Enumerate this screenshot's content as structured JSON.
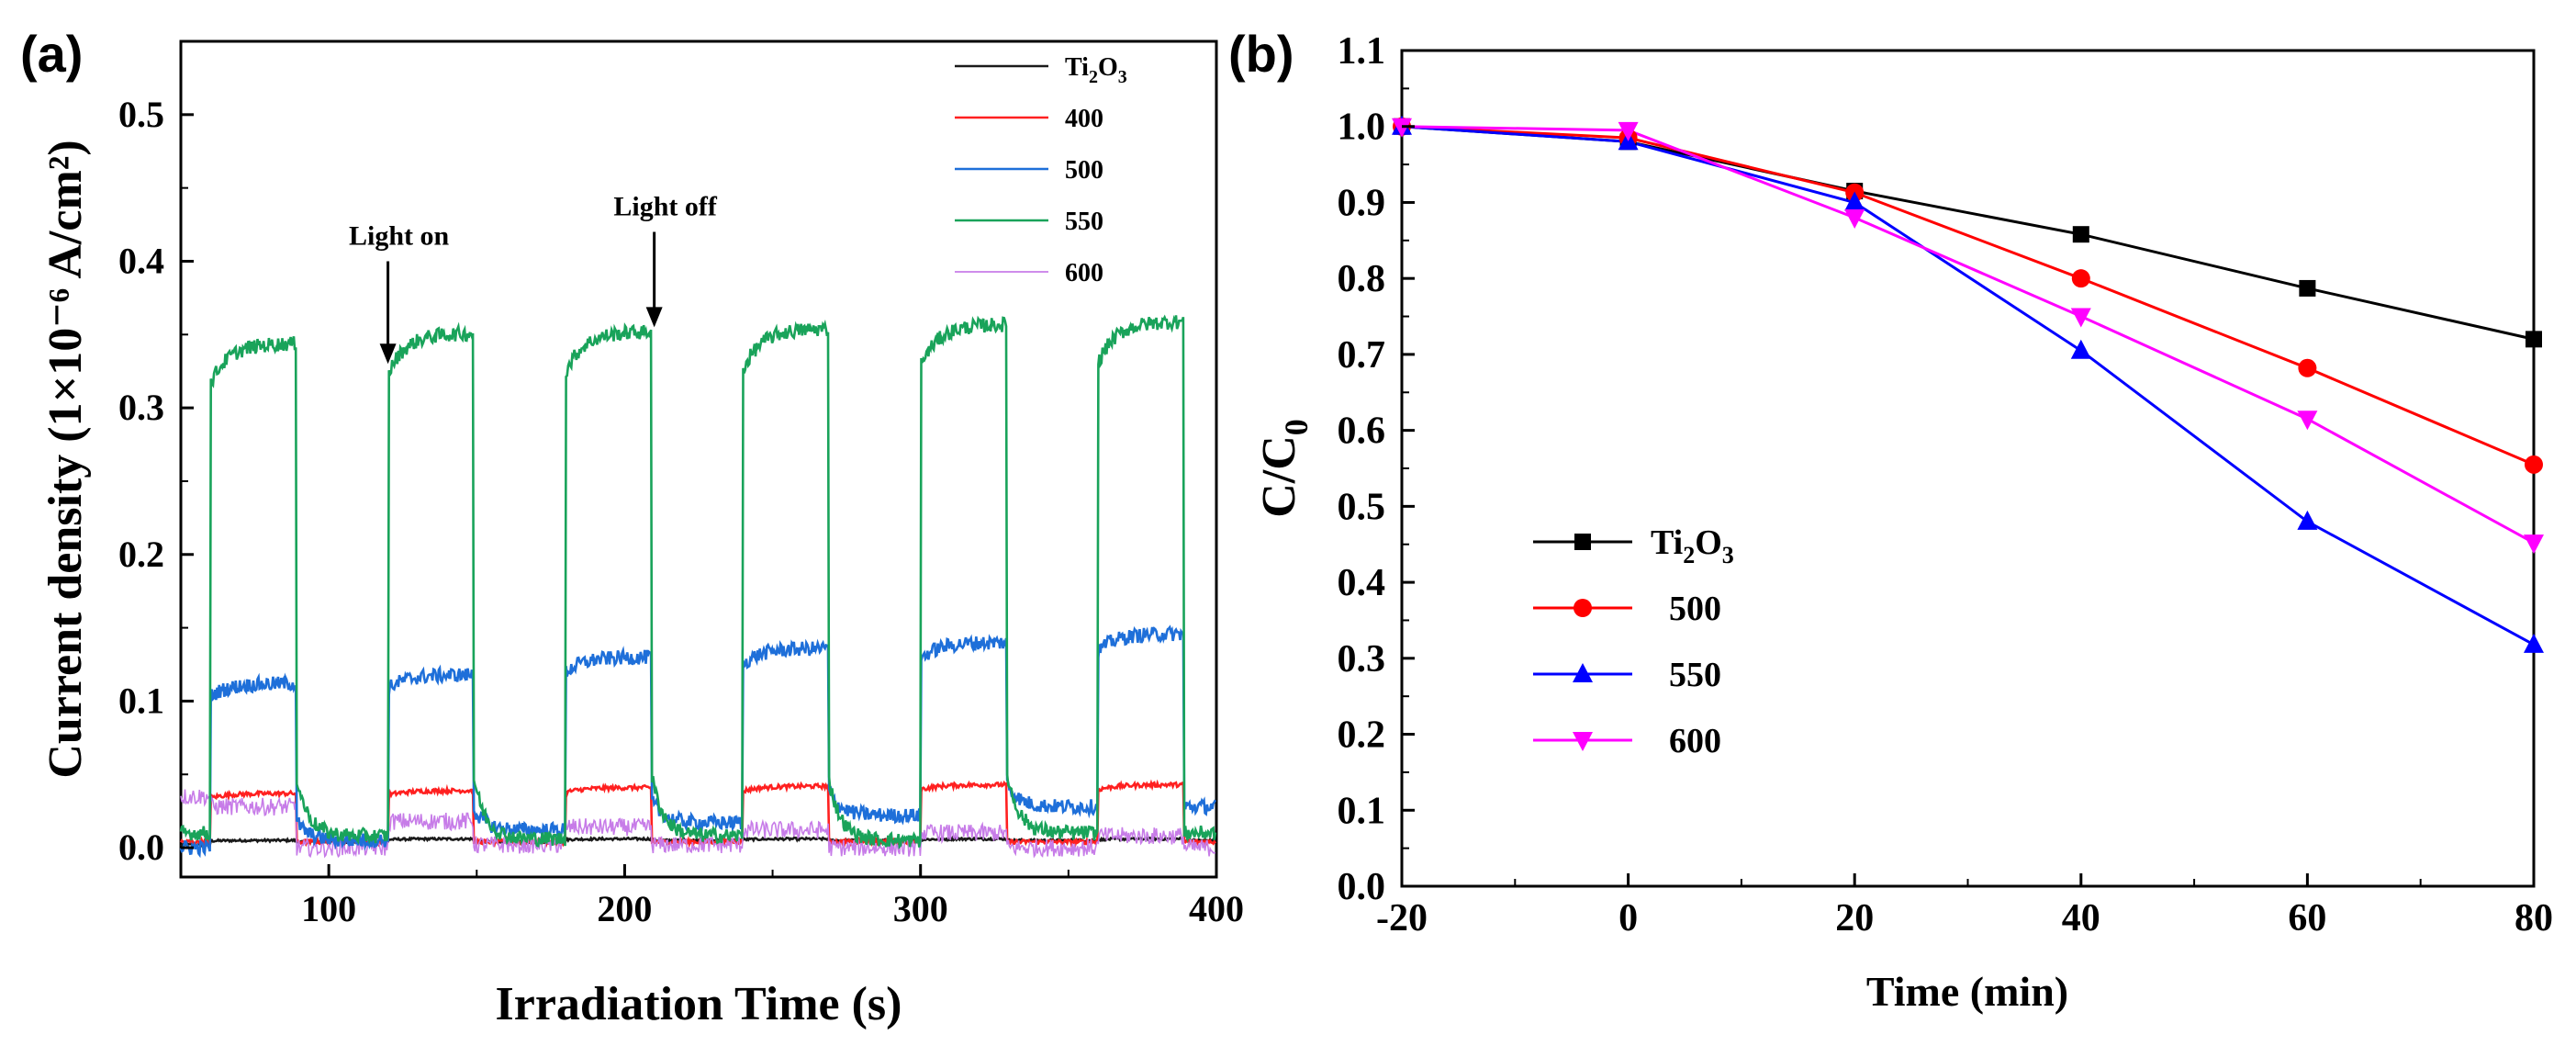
{
  "chart_data": [
    {
      "type": "line",
      "panel_label": "(a)",
      "xlabel": "Irradiation Time (s)",
      "ylabel": "Current density (1×10⁻⁶ A/cm²)",
      "xlim": [
        50,
        400
      ],
      "ylim": [
        -0.02,
        0.55
      ],
      "xticks": [
        100,
        200,
        300,
        400
      ],
      "yticks": [
        0.0,
        0.1,
        0.2,
        0.3,
        0.4,
        0.5
      ],
      "legend": {
        "position": "top-right"
      },
      "annotations": [
        {
          "text": "Light on",
          "x": 120,
          "arrow_from": 0.4,
          "arrow_to": 0.33
        },
        {
          "text": "Light off",
          "x": 210,
          "arrow_from": 0.42,
          "arrow_to": 0.355
        }
      ],
      "on_intervals": [
        [
          60,
          89
        ],
        [
          120,
          149
        ],
        [
          180,
          209
        ],
        [
          240,
          269
        ],
        [
          300,
          329
        ],
        [
          360,
          389
        ]
      ],
      "series": [
        {
          "name": "Ti2O3",
          "display": {
            "base": "Ti",
            "sub1": "2",
            "mid": "O",
            "sub2": "3"
          },
          "color": "#1a1a1a",
          "dark": [
            0.002,
            0.004,
            0.004,
            0.005,
            0.005,
            0.005
          ],
          "plateau": [
            0.005,
            0.006,
            0.006,
            0.006,
            0.006,
            0.006
          ]
        },
        {
          "name": "400",
          "color": "#ff2020",
          "dark": [
            0.004,
            0.004,
            0.004,
            0.004,
            0.004,
            0.004
          ],
          "plateau": [
            0.037,
            0.039,
            0.041,
            0.042,
            0.043,
            0.043
          ]
        },
        {
          "name": "500",
          "color": "#1e6fd9",
          "dark": [
            0.0,
            0.005,
            0.012,
            0.017,
            0.022,
            0.028
          ],
          "plateau": [
            0.112,
            0.118,
            0.13,
            0.136,
            0.14,
            0.146
          ]
        },
        {
          "name": "550",
          "color": "#19a35a",
          "dark": [
            0.01,
            0.008,
            0.006,
            0.008,
            0.005,
            0.01
          ],
          "plateau": [
            0.344,
            0.351,
            0.352,
            0.354,
            0.357,
            0.359
          ]
        },
        {
          "name": "600",
          "color": "#c77ce8",
          "dark": [
            0.003,
            0.0,
            0.002,
            0.002,
            0.0,
            0.0
          ],
          "plateau": [
            0.028,
            0.018,
            0.014,
            0.012,
            0.01,
            0.008
          ]
        }
      ]
    },
    {
      "type": "line",
      "panel_label": "(b)",
      "xlabel": "Time (min)",
      "ylabel": "C/C0",
      "ylabel_parts": {
        "base": "C/C",
        "sub": "0"
      },
      "xlim": [
        -20,
        80
      ],
      "ylim": [
        0.0,
        1.1
      ],
      "xticks": [
        -20,
        0,
        20,
        40,
        60,
        80
      ],
      "yticks": [
        0.0,
        0.1,
        0.2,
        0.3,
        0.4,
        0.5,
        0.6,
        0.7,
        0.8,
        0.9,
        1.0,
        1.1
      ],
      "x": [
        -20,
        0,
        20,
        40,
        60,
        80
      ],
      "legend": {
        "position": "bottom-left"
      },
      "series": [
        {
          "name": "Ti2O3",
          "display": {
            "base": "Ti",
            "sub1": "2",
            "mid": "O",
            "sub2": "3"
          },
          "color": "#000000",
          "marker": "square",
          "values": [
            1.0,
            0.98,
            0.915,
            0.858,
            0.787,
            0.72
          ]
        },
        {
          "name": "500",
          "color": "#ff0000",
          "marker": "circle",
          "values": [
            1.0,
            0.985,
            0.913,
            0.8,
            0.682,
            0.555
          ]
        },
        {
          "name": "550",
          "color": "#0000ff",
          "marker": "triangle-up",
          "values": [
            1.0,
            0.98,
            0.9,
            0.705,
            0.48,
            0.318
          ]
        },
        {
          "name": "600",
          "color": "#ff00ff",
          "marker": "triangle-down",
          "values": [
            1.0,
            0.995,
            0.88,
            0.75,
            0.615,
            0.452
          ]
        }
      ]
    }
  ]
}
